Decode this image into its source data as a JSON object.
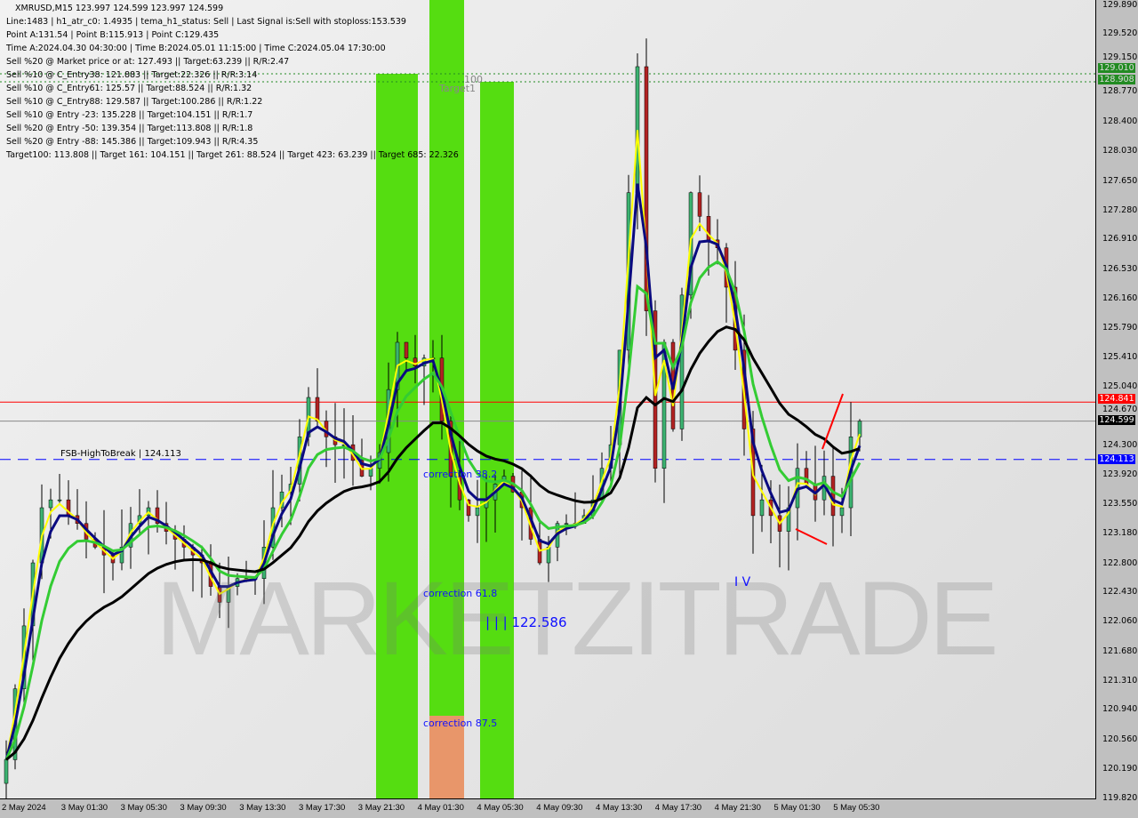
{
  "header": {
    "symbol_line": "XMRUSD,M15  123.997 124.599 123.997 124.599",
    "lines": [
      "Line:1483 | h1_atr_c0: 1.4935 | tema_h1_status: Sell | Last Signal is:Sell with stoploss:153.539",
      "Point A:131.54 | Point B:115.913 | Point C:129.435",
      "Time A:2024.04.30 04:30:00 | Time B:2024.05.01 11:15:00 | Time C:2024.05.04 17:30:00",
      "Sell %20 @ Market price or at: 127.493 || Target:63.239 || R/R:2.47",
      "Sell %10 @ C_Entry38: 121.883 || Target:22.326 || R/R:3.14",
      "Sell %10 @ C_Entry61: 125.57 || Target:88.524 || R/R:1.32",
      "Sell %10 @ C_Entry88: 129.587 || Target:100.286 || R/R:1.22",
      "Sell %10 @ Entry -23: 135.228 || Target:104.151 || R/R:1.7",
      "Sell %20 @ Entry -50: 139.354 || Target:113.808 || R/R:1.8",
      "Sell %20 @ Entry -88: 145.386 || Target:109.943 || R/R:4.35",
      "Target100: 113.808 || Target 161: 104.151 || Target 261: 88.524 || Target 423: 63.239 || Target 685: 22.326"
    ]
  },
  "annotations": {
    "fsb": "FSB-HighToBreak | 124.113",
    "corr38": "correction 38.2",
    "corr61": "correction 61.8",
    "corr87": "correction 87.5",
    "wave3": "| | | 122.586",
    "wave4": "I V",
    "level100": "100",
    "target1": "Target1",
    "watermark": "MARKETZITRADE"
  },
  "chart_data": {
    "type": "candlestick",
    "title": "XMRUSD,M15",
    "ylim": [
      119.82,
      129.89
    ],
    "y_ticks": [
      "129.890",
      "129.520",
      "129.150",
      "128.770",
      "128.400",
      "128.030",
      "127.650",
      "127.280",
      "126.910",
      "126.530",
      "126.160",
      "125.790",
      "125.410",
      "125.040",
      "124.670",
      "124.300",
      "123.920",
      "123.550",
      "123.180",
      "122.800",
      "122.430",
      "122.060",
      "121.680",
      "121.310",
      "120.940",
      "120.560",
      "120.190",
      "119.820"
    ],
    "x_ticks": [
      "2 May 2024",
      "3 May 01:30",
      "3 May 05:30",
      "3 May 09:30",
      "3 May 13:30",
      "3 May 17:30",
      "3 May 21:30",
      "4 May 01:30",
      "4 May 05:30",
      "4 May 09:30",
      "4 May 13:30",
      "4 May 17:30",
      "4 May 21:30",
      "5 May 01:30",
      "5 May 05:30"
    ],
    "closes": [
      120.3,
      121.2,
      122.0,
      122.8,
      123.5,
      123.6,
      123.6,
      123.4,
      123.3,
      123.1,
      123.0,
      122.9,
      122.8,
      123.0,
      123.3,
      123.4,
      123.5,
      123.3,
      123.2,
      123.1,
      123.0,
      122.9,
      122.8,
      122.5,
      122.3,
      122.5,
      122.6,
      122.6,
      122.6,
      123.0,
      123.5,
      123.7,
      123.8,
      124.4,
      124.9,
      124.6,
      124.4,
      124.3,
      124.3,
      124.1,
      123.9,
      124.0,
      124.2,
      125.0,
      125.6,
      125.4,
      125.3,
      125.4,
      125.4,
      124.6,
      123.9,
      123.6,
      123.4,
      123.5,
      123.6,
      123.8,
      123.9,
      123.7,
      123.5,
      123.1,
      122.8,
      123.0,
      123.3,
      123.3,
      123.3,
      123.4,
      123.6,
      124.0,
      124.3,
      125.5,
      127.5,
      129.1,
      126.0,
      124.0,
      125.6,
      124.5,
      126.2,
      127.5,
      127.2,
      126.9,
      126.8,
      126.3,
      125.5,
      124.5,
      123.4,
      123.6,
      123.4,
      123.2,
      123.5,
      124.0,
      123.8,
      123.6,
      123.9,
      123.4,
      123.5,
      124.4,
      124.6
    ],
    "levels": [
      {
        "value": 124.841,
        "label": "124.841",
        "color": "#ff0000"
      },
      {
        "value": 124.599,
        "label": "124.599",
        "color": "#000000"
      },
      {
        "value": 124.113,
        "label": "124.113",
        "color": "#0000ff"
      },
      {
        "value": 129.01,
        "label": "129.010",
        "color": "#228b22"
      },
      {
        "value": 128.908,
        "label": "128.908",
        "color": "#228b22"
      }
    ],
    "colors": {
      "bull": "#3cb371",
      "bear": "#b22222",
      "band": "#55dd11",
      "band_light": "#77ee11",
      "band_orange": "#e8966a",
      "ma_fast": "#ffff00",
      "ma_mid": "#0a0a80",
      "ma_green": "#33cc33",
      "ma_slow": "#000000"
    }
  }
}
